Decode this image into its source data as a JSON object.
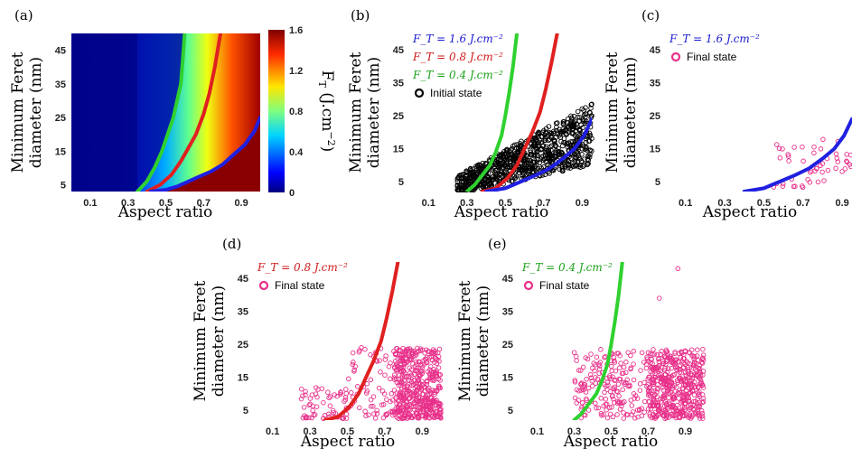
{
  "chart_data": [
    {
      "panel": "(a)",
      "type": "heatmap",
      "xlabel": "Aspect ratio",
      "ylabel": [
        "Minimum Feret",
        "diameter (nm)"
      ],
      "xticks": [
        "0.1",
        "0.3",
        "0.5",
        "0.7",
        "0.9"
      ],
      "yticks": [
        "5",
        "15",
        "25",
        "35",
        "45"
      ],
      "xlim": [
        0.0,
        1.0
      ],
      "ylim": [
        3,
        50
      ],
      "colorbar": {
        "label": "F_T (J.cm⁻²)",
        "label_main": "F",
        "label_sub": "T",
        "label_rest": " (J.cm",
        "label_sup": "−2",
        "label_close": ")",
        "ticks": [
          "0",
          "0.4",
          "0.8",
          "1.2",
          "1.6"
        ],
        "range": [
          0,
          1.6
        ],
        "colormap": "jet"
      },
      "series": [
        {
          "color": "#2fd12f",
          "x": [
            0.35,
            0.4,
            0.44,
            0.48,
            0.51,
            0.54,
            0.56,
            0.58,
            0.59,
            0.6
          ],
          "y": [
            3,
            6,
            10,
            15,
            20,
            25,
            30,
            35,
            42,
            50
          ]
        },
        {
          "color": "#e02020",
          "x": [
            0.4,
            0.47,
            0.53,
            0.58,
            0.62,
            0.66,
            0.7,
            0.73,
            0.76,
            0.79
          ],
          "y": [
            3,
            5,
            8,
            12,
            16,
            20,
            26,
            32,
            40,
            50
          ]
        },
        {
          "color": "#2020e0",
          "x": [
            0.42,
            0.5,
            0.56,
            0.62,
            0.68,
            0.74,
            0.8,
            0.86,
            0.92,
            0.97,
            1.0
          ],
          "y": [
            3,
            3.5,
            4.5,
            6,
            7.5,
            9,
            11,
            14,
            17,
            21,
            25
          ]
        }
      ]
    },
    {
      "panel": "(b)",
      "type": "scatter",
      "xlabel": "Aspect ratio",
      "ylabel": [
        "Minimum Feret",
        "diameter (nm)"
      ],
      "xticks": [
        "0.1",
        "0.3",
        "0.5",
        "0.7",
        "0.9"
      ],
      "yticks": [
        "5",
        "15",
        "25",
        "35",
        "45"
      ],
      "xlim": [
        0.0,
        0.95
      ],
      "ylim": [
        2,
        50
      ],
      "legend": [
        {
          "text": "F_T = 1.6 J.cm⁻²",
          "color": "#1a1ad0"
        },
        {
          "text": "F_T = 0.8 J.cm⁻²",
          "color": "#d01a1a"
        },
        {
          "text": "F_T = 0.4 J.cm⁻²",
          "color": "#1aa01a"
        },
        {
          "text": "Initial state",
          "color": "#000000",
          "marker": "circle"
        }
      ],
      "points": {
        "label": "Initial state",
        "color": "#000000",
        "count": 900,
        "distribution": "aspect ratio 0.25–0.95, diameter rising from ~5 nm to ~25 nm"
      },
      "curves": [
        "green",
        "red",
        "blue"
      ]
    },
    {
      "panel": "(c)",
      "type": "scatter",
      "xlabel": "Aspect ratio",
      "ylabel": [
        "Minimum Feret",
        "diameter (nm)"
      ],
      "xticks": [
        "0.1",
        "0.3",
        "0.5",
        "0.7",
        "0.9"
      ],
      "yticks": [
        "5",
        "15",
        "25",
        "35",
        "45"
      ],
      "xlim": [
        0.0,
        0.95
      ],
      "ylim": [
        2,
        50
      ],
      "legend": [
        {
          "text": "F_T = 1.6 J.cm⁻²",
          "color": "#1a1ad0"
        },
        {
          "text": "Final state",
          "color": "#e8308a",
          "marker": "circle"
        }
      ],
      "points": {
        "label": "Final state",
        "color": "#e8308a",
        "count": 50,
        "distribution": "aspect ratio 0.55–0.95, diameter 3–19 nm"
      },
      "curves": [
        "blue"
      ]
    },
    {
      "panel": "(d)",
      "type": "scatter",
      "xlabel": "Aspect ratio",
      "ylabel": [
        "Minimum Feret",
        "diameter (nm)"
      ],
      "xticks": [
        "0.1",
        "0.3",
        "0.5",
        "0.7",
        "0.9"
      ],
      "yticks": [
        "5",
        "15",
        "25",
        "35",
        "45"
      ],
      "xlim": [
        0.0,
        1.0
      ],
      "ylim": [
        2,
        50
      ],
      "legend": [
        {
          "text": "F_T = 0.8 J.cm⁻²",
          "color": "#d01a1a"
        },
        {
          "text": "Final state",
          "color": "#e8308a",
          "marker": "circle"
        }
      ],
      "points": {
        "label": "Final state",
        "color": "#e8308a",
        "count": 600,
        "distribution": "aspect ratio 0.25–1.0, diameter 2–24 nm, dense at 0.8–1.0"
      },
      "curves": [
        "red"
      ]
    },
    {
      "panel": "(e)",
      "type": "scatter",
      "xlabel": "Aspect ratio",
      "ylabel": [
        "Minimum Feret",
        "diameter (nm)"
      ],
      "xticks": [
        "0.1",
        "0.3",
        "0.5",
        "0.7",
        "0.9"
      ],
      "yticks": [
        "5",
        "15",
        "25",
        "35",
        "45"
      ],
      "xlim": [
        0.0,
        1.0
      ],
      "ylim": [
        2,
        50
      ],
      "legend": [
        {
          "text": "F_T = 0.4 J.cm⁻²",
          "color": "#1aa01a"
        },
        {
          "text": "Final state",
          "color": "#e8308a",
          "marker": "circle"
        }
      ],
      "points": {
        "label": "Final state",
        "color": "#e8308a",
        "count": 650,
        "distribution": "aspect ratio 0.3–1.0, diameter 2–24 nm, few outliers up to 48 nm"
      },
      "curves": [
        "green"
      ]
    }
  ],
  "curves": {
    "green": {
      "color": "#2fd12f",
      "x": [
        0.3,
        0.34,
        0.38,
        0.42,
        0.45,
        0.48,
        0.5,
        0.52,
        0.54,
        0.56
      ],
      "y": [
        2,
        4,
        7,
        10,
        14,
        19,
        25,
        32,
        40,
        50
      ]
    },
    "red": {
      "color": "#e02020",
      "x": [
        0.38,
        0.45,
        0.51,
        0.56,
        0.6,
        0.64,
        0.68,
        0.71,
        0.74,
        0.77
      ],
      "y": [
        2,
        3,
        6,
        10,
        15,
        20,
        26,
        33,
        41,
        50
      ]
    },
    "blue": {
      "color": "#2020e0",
      "x": [
        0.4,
        0.5,
        0.58,
        0.66,
        0.73,
        0.8,
        0.86,
        0.91,
        0.95
      ],
      "y": [
        2,
        3,
        5,
        7,
        9,
        12,
        15,
        19,
        24
      ]
    }
  },
  "colors": {
    "pink": "#e8308a",
    "black": "#000000"
  }
}
